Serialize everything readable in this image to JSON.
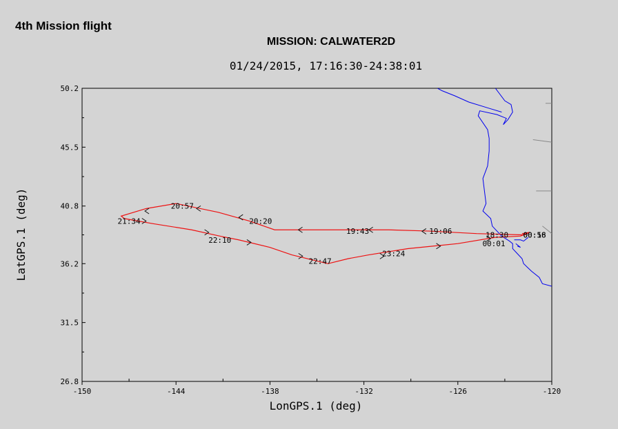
{
  "page_heading": "4th Mission flight",
  "chart_data": {
    "type": "line",
    "title": "MISSION: CALWATER2D",
    "subtitle": "01/24/2015, 17:16:30-24:38:01",
    "xlabel": "LonGPS.1 (deg)",
    "ylabel": "LatGPS.1 (deg)",
    "xlim": [
      -150,
      -120
    ],
    "ylim": [
      26.8,
      50.2
    ],
    "x_ticks": [
      -150,
      -144,
      -138,
      -132,
      -126,
      -120
    ],
    "y_ticks": [
      26.8,
      31.5,
      36.2,
      40.8,
      45.5,
      50.2
    ],
    "grid": false,
    "colors": {
      "track": "#ee1111",
      "coastline": "#0000ee",
      "borders": "#888888",
      "background": "#d4d4d4"
    },
    "series": [
      {
        "x": [
          -121.6,
          -121.9,
          -124.8,
          -127.8,
          -130.4,
          -133.1,
          -135.0,
          -137.2,
          -137.7,
          -139.3,
          -141.3,
          -144.0,
          -145.9,
          -147.5,
          -147.3,
          -145.5,
          -143.0,
          -141.2,
          -140.0,
          -138.0,
          -136.6,
          -134.3,
          -133.0,
          -131.7,
          -129.2,
          -126.0,
          -123.6,
          -122.0,
          -121.4,
          -121.9
        ],
        "y": [
          38.6,
          38.5,
          38.6,
          38.8,
          38.9,
          38.9,
          38.9,
          38.9,
          38.9,
          39.6,
          40.3,
          41.0,
          40.6,
          40.0,
          39.8,
          39.4,
          38.9,
          38.4,
          38.1,
          37.5,
          36.9,
          36.2,
          36.6,
          36.9,
          37.4,
          37.8,
          38.3,
          38.4,
          38.7,
          38.6
        ]
      }
    ],
    "direction_arrows": [
      {
        "x": -128.2,
        "y": 38.78,
        "dir": "left"
      },
      {
        "x": -131.6,
        "y": 38.9,
        "dir": "left"
      },
      {
        "x": -136.1,
        "y": 38.9,
        "dir": "left"
      },
      {
        "x": -139.9,
        "y": 39.9,
        "dir": "left"
      },
      {
        "x": -142.6,
        "y": 40.6,
        "dir": "left"
      },
      {
        "x": -145.9,
        "y": 40.4,
        "dir": "left"
      },
      {
        "x": -146.0,
        "y": 39.6,
        "dir": "right"
      },
      {
        "x": -142.0,
        "y": 38.7,
        "dir": "right"
      },
      {
        "x": -139.3,
        "y": 37.9,
        "dir": "right"
      },
      {
        "x": -136.0,
        "y": 36.8,
        "dir": "right"
      },
      {
        "x": -130.8,
        "y": 36.8,
        "dir": "right"
      },
      {
        "x": -127.2,
        "y": 37.6,
        "dir": "right"
      },
      {
        "x": -124.0,
        "y": 38.2,
        "dir": "right"
      }
    ],
    "time_labels": [
      {
        "text": "18:30",
        "x": -123.5,
        "y": 38.5
      },
      {
        "text": "19:06",
        "x": -127.1,
        "y": 38.8
      },
      {
        "text": "19:43",
        "x": -132.4,
        "y": 38.8
      },
      {
        "text": "20:20",
        "x": -138.6,
        "y": 39.6
      },
      {
        "text": "20:57",
        "x": -143.6,
        "y": 40.8
      },
      {
        "text": "21:34",
        "x": -147.0,
        "y": 39.6
      },
      {
        "text": "22:10",
        "x": -141.2,
        "y": 38.1
      },
      {
        "text": "22:47",
        "x": -134.8,
        "y": 36.4
      },
      {
        "text": "23:24",
        "x": -130.1,
        "y": 37.0
      },
      {
        "text": "00:01",
        "x": -123.7,
        "y": 37.8
      },
      {
        "text": "00:18",
        "x": -121.1,
        "y": 38.5
      },
      {
        "text": "00:56",
        "x": -121.1,
        "y": 38.5
      }
    ],
    "coastline": [
      [
        [
          -123.6,
          50.2
        ],
        [
          -123.0,
          49.2
        ],
        [
          -122.6,
          48.9
        ],
        [
          -122.5,
          48.3
        ],
        [
          -122.8,
          47.7
        ],
        [
          -123.1,
          47.3
        ],
        [
          -122.9,
          47.8
        ],
        [
          -123.5,
          48.1
        ],
        [
          -124.6,
          48.4
        ],
        [
          -124.7,
          48.0
        ],
        [
          -124.1,
          46.9
        ],
        [
          -124.0,
          46.2
        ],
        [
          -124.0,
          45.2
        ],
        [
          -124.1,
          44.0
        ],
        [
          -124.4,
          43.0
        ],
        [
          -124.3,
          42.0
        ],
        [
          -124.2,
          41.0
        ],
        [
          -124.4,
          40.4
        ],
        [
          -123.9,
          39.8
        ],
        [
          -123.8,
          39.2
        ],
        [
          -123.2,
          38.4
        ],
        [
          -122.7,
          38.0
        ],
        [
          -122.5,
          37.8
        ],
        [
          -122.5,
          37.4
        ],
        [
          -122.2,
          37.0
        ],
        [
          -121.9,
          36.6
        ],
        [
          -121.8,
          36.2
        ],
        [
          -121.3,
          35.6
        ],
        [
          -120.8,
          35.1
        ],
        [
          -120.6,
          34.6
        ],
        [
          -120.0,
          34.4
        ]
      ],
      [
        [
          -123.2,
          48.3
        ],
        [
          -124.0,
          48.6
        ],
        [
          -125.3,
          49.1
        ],
        [
          -126.2,
          49.6
        ],
        [
          -127.0,
          50.0
        ],
        [
          -127.3,
          50.2
        ]
      ],
      [
        [
          -122.4,
          38.1
        ],
        [
          -122.0,
          38.1
        ],
        [
          -121.8,
          38.0
        ],
        [
          -121.5,
          38.3
        ]
      ],
      [
        [
          -122.3,
          37.8
        ],
        [
          -122.0,
          37.5
        ],
        [
          -122.2,
          37.6
        ]
      ]
    ],
    "borders": [
      [
        [
          -120.4,
          49.0
        ],
        [
          -120.0,
          49.0
        ]
      ],
      [
        [
          -121.2,
          46.1
        ],
        [
          -120.0,
          45.9
        ]
      ],
      [
        [
          -121.0,
          42.0
        ],
        [
          -120.0,
          42.0
        ]
      ],
      [
        [
          -120.6,
          39.2
        ],
        [
          -120.0,
          38.6
        ]
      ]
    ]
  }
}
